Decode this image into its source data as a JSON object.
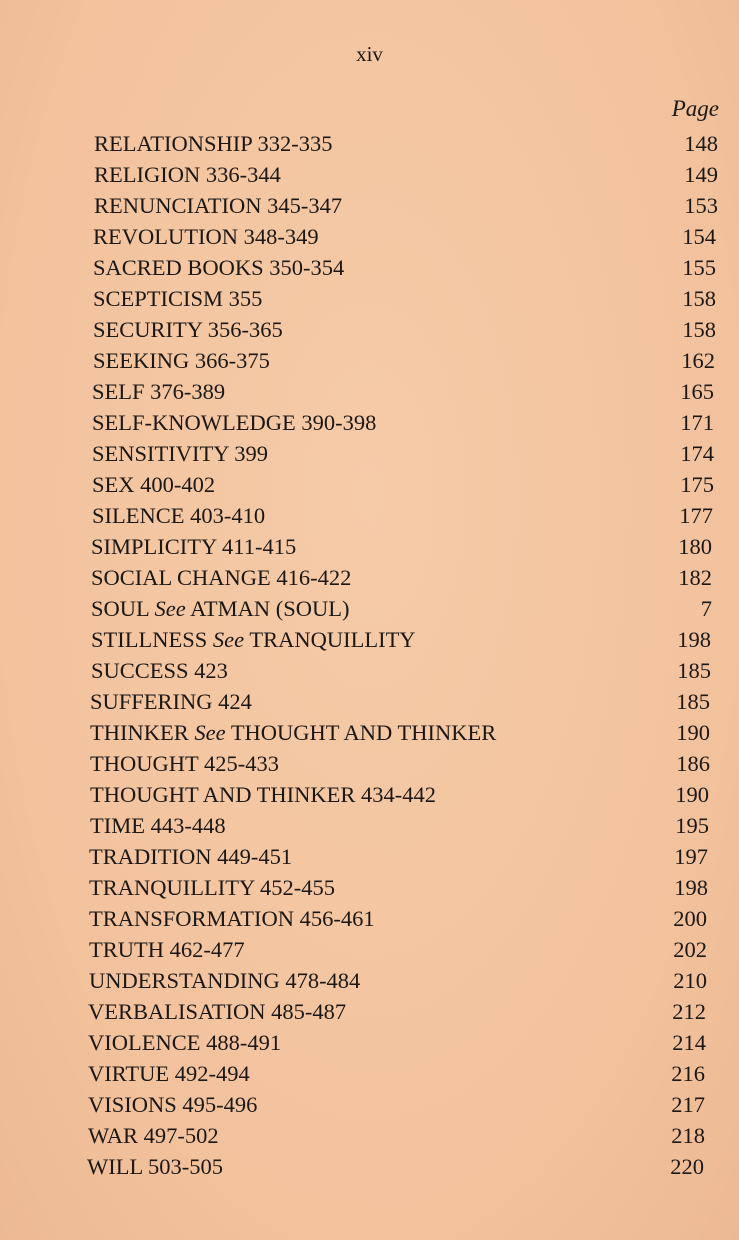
{
  "folio": "xiv",
  "column_header": "Page",
  "entries": [
    {
      "main": "RELATIONSHIP 332-335",
      "page": "148"
    },
    {
      "main": "RELIGION 336-344",
      "page": "149"
    },
    {
      "main": "RENUNCIATION 345-347",
      "page": "153"
    },
    {
      "main": "REVOLUTION 348-349",
      "page": "154"
    },
    {
      "main": "SACRED BOOKS 350-354",
      "page": "155"
    },
    {
      "main": "SCEPTICISM 355",
      "page": "158"
    },
    {
      "main": "SECURITY 356-365",
      "page": "158"
    },
    {
      "main": "SEEKING 366-375",
      "page": "162"
    },
    {
      "main": "SELF 376-389",
      "page": "165"
    },
    {
      "main": "SELF-KNOWLEDGE 390-398",
      "page": "171"
    },
    {
      "main": "SENSITIVITY 399",
      "page": "174"
    },
    {
      "main": "SEX 400-402",
      "page": "175"
    },
    {
      "main": "SILENCE 403-410",
      "page": "177"
    },
    {
      "main": "SIMPLICITY 411-415",
      "page": "180"
    },
    {
      "main": "SOCIAL CHANGE 416-422",
      "page": "182"
    },
    {
      "main": "SOUL",
      "see": "See",
      "target": "ATMAN (SOUL)",
      "page": "7"
    },
    {
      "main": "STILLNESS",
      "see": "See",
      "target": "TRANQUILLITY",
      "page": "198"
    },
    {
      "main": "SUCCESS 423",
      "page": "185"
    },
    {
      "main": "SUFFERING 424",
      "page": "185"
    },
    {
      "main": "THINKER",
      "see": "See",
      "target": "THOUGHT AND THINKER",
      "page": "190"
    },
    {
      "main": "THOUGHT 425-433",
      "page": "186"
    },
    {
      "main": "THOUGHT AND THINKER 434-442",
      "page": "190"
    },
    {
      "main": "TIME 443-448",
      "page": "195"
    },
    {
      "main": "TRADITION 449-451",
      "page": "197"
    },
    {
      "main": "TRANQUILLITY 452-455",
      "page": "198"
    },
    {
      "main": "TRANSFORMATION 456-461",
      "page": "200"
    },
    {
      "main": "TRUTH 462-477",
      "page": "202"
    },
    {
      "main": "UNDERSTANDING 478-484",
      "page": "210"
    },
    {
      "main": "VERBALISATION 485-487",
      "page": "212"
    },
    {
      "main": "VIOLENCE 488-491",
      "page": "214"
    },
    {
      "main": "VIRTUE 492-494",
      "page": "216"
    },
    {
      "main": "VISIONS 495-496",
      "page": "217"
    },
    {
      "main": "WAR 497-502",
      "page": "218"
    },
    {
      "main": "WILL 503-505",
      "page": "220"
    }
  ]
}
